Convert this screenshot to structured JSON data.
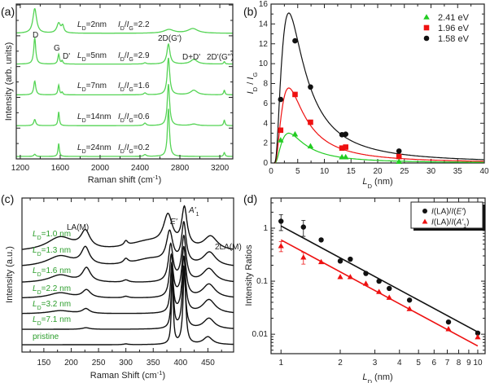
{
  "panels": {
    "a": "(a)",
    "b": "(b)",
    "c": "(c)",
    "d": "(d)"
  },
  "chart_data": [
    {
      "panel": "(a)",
      "type": "line",
      "xlabel": "Raman shift (cm^{-1})",
      "ylabel": "Intensity (arb. units)",
      "xlim": [
        1160,
        3330
      ],
      "ylim": [
        -0.08,
        4.95
      ],
      "xticks": [
        1200,
        1600,
        2000,
        2400,
        2800,
        3200
      ],
      "color": "#55d455",
      "peak_labels": [
        "D",
        "G",
        "D'",
        "2D(G')",
        "D+D'",
        "2D'(G'')"
      ],
      "spectra": [
        {
          "label_ld": "*L*_{D}=24nm",
          "label_ratio": "*I*_{D}/*I*_{G}=0.2",
          "offset": 0,
          "peaks": [
            [
              1345,
              0.07,
              12
            ],
            [
              1585,
              0.42,
              8
            ],
            [
              2450,
              0.06,
              15
            ],
            [
              2685,
              1.55,
              12
            ],
            [
              3245,
              0.13,
              8
            ]
          ]
        },
        {
          "label_ld": "*L*_{D}=14nm",
          "label_ratio": "*I*_{D}/*I*_{G}=0.6",
          "offset": 1,
          "peaks": [
            [
              1345,
              0.2,
              12
            ],
            [
              1585,
              0.45,
              8
            ],
            [
              2450,
              0.08,
              15
            ],
            [
              2685,
              1.35,
              14
            ],
            [
              2940,
              0.05,
              40
            ],
            [
              3245,
              0.18,
              8
            ]
          ]
        },
        {
          "label_ld": "*L*_{D}=7nm",
          "label_ratio": "*I*_{D}/*I*_{G}=1.6",
          "offset": 2,
          "peaks": [
            [
              1345,
              0.45,
              12
            ],
            [
              1585,
              0.32,
              9
            ],
            [
              1620,
              0.08,
              8
            ],
            [
              2450,
              0.06,
              15
            ],
            [
              2685,
              1.2,
              15
            ],
            [
              2940,
              0.15,
              40
            ],
            [
              3245,
              0.15,
              8
            ]
          ]
        },
        {
          "label_ld": "*L*_{D}=5nm",
          "label_ratio": "*I*_{D}/*I*_{G}=2.9",
          "offset": 3,
          "peaks": [
            [
              1345,
              0.85,
              12
            ],
            [
              1585,
              0.32,
              10
            ],
            [
              1620,
              0.1,
              8
            ],
            [
              2450,
              0.04,
              15
            ],
            [
              2685,
              0.65,
              18
            ],
            [
              2940,
              0.15,
              40
            ],
            [
              3245,
              0.08,
              8
            ]
          ]
        },
        {
          "label_ld": "*L*_{D}=2nm",
          "label_ratio": "*I*_{D}/*I*_{G}=2.2",
          "offset": 4,
          "peaks": [
            [
              1345,
              0.8,
              22
            ],
            [
              1585,
              0.32,
              22
            ],
            [
              1625,
              0.22,
              14
            ],
            [
              2690,
              0.12,
              60
            ],
            [
              2930,
              0.15,
              60
            ]
          ]
        }
      ]
    },
    {
      "panel": "(b)",
      "type": "scatter",
      "xlabel": "*L*_{D} (nm)",
      "ylabel": "*I*_{D} / *I*_{G}",
      "xlim": [
        0,
        40
      ],
      "ylim": [
        0,
        16
      ],
      "xticks": [
        0,
        5,
        10,
        15,
        20,
        25,
        30,
        35,
        40
      ],
      "yticks": [
        0,
        2,
        4,
        6,
        8,
        10,
        12,
        14,
        16
      ],
      "legend_position": "top-right",
      "series": [
        {
          "name": "2.41 eV",
          "marker": "triangle",
          "color": "#22cc22",
          "fit_peak": 3.0,
          "x": [
            1.8,
            4.5,
            7.4,
            13.3,
            14,
            24
          ],
          "y": [
            2.3,
            2.9,
            1.7,
            0.6,
            0.6,
            0.15
          ]
        },
        {
          "name": "1.96 eV",
          "marker": "square",
          "color": "#ee1111",
          "fit_peak": 7.55,
          "x": [
            1.8,
            4.5,
            7.4,
            13.3,
            14,
            24
          ],
          "y": [
            3.3,
            6.9,
            4.1,
            1.5,
            1.6,
            0.65
          ]
        },
        {
          "name": "1.58 eV",
          "marker": "circle",
          "color": "#111111",
          "fit_peak": 15.1,
          "x": [
            1.8,
            4.5,
            7.4,
            13.3,
            14,
            24
          ],
          "y": [
            6.4,
            12.3,
            7.65,
            2.85,
            2.9,
            1.2
          ]
        }
      ]
    },
    {
      "panel": "(c)",
      "type": "line",
      "xlabel": "Raman Shift (cm^{-1})",
      "ylabel": "Intensity (a.u.)",
      "xlim": [
        110,
        497
      ],
      "ylim": [
        -0.47,
        9.5
      ],
      "xticks": [
        150,
        200,
        250,
        300,
        350,
        400,
        450
      ],
      "color": "#111111",
      "label_color": "#2a9d2a",
      "peak_labels": {
        "la": "LA(M)",
        "star": "*",
        "e": "*E'*",
        "a": "*A'*_{1}",
        "la2": "2LA(M)"
      },
      "spectra": [
        {
          "label": "pristine",
          "offset": 0,
          "peaks": [
            [
              385,
              4.5,
              2
            ],
            [
              407,
              4.8,
              3
            ],
            [
              450,
              0.5,
              10
            ],
            [
              300,
              0.05,
              5
            ]
          ]
        },
        {
          "label": "*L*_{D}=7.1 nm",
          "offset": 1,
          "peaks": [
            [
              385,
              3.8,
              2.5
            ],
            [
              406,
              4.0,
              3.5
            ],
            [
              452,
              0.7,
              12
            ],
            [
              227,
              0.1,
              8
            ]
          ]
        },
        {
          "label": "*L*_{D}=3.2 nm",
          "offset": 2,
          "peaks": [
            [
              384,
              3.2,
              3
            ],
            [
              406,
              3.6,
              4
            ],
            [
              452,
              0.9,
              14
            ],
            [
              227,
              0.3,
              8
            ],
            [
              180,
              0.2,
              25
            ]
          ]
        },
        {
          "label": "*L*_{D}=2.2 nm",
          "offset": 3,
          "peaks": [
            [
              383,
              2.7,
              4
            ],
            [
              406,
              3.2,
              4.5
            ],
            [
              452,
              0.9,
              14
            ],
            [
              228,
              0.5,
              9
            ],
            [
              180,
              0.35,
              25
            ],
            [
              300,
              0.1,
              6
            ]
          ]
        },
        {
          "label": "*L*_{D}=1.6 nm",
          "offset": 4,
          "peaks": [
            [
              382,
              2.4,
              5
            ],
            [
              406,
              2.9,
              5
            ],
            [
              452,
              0.9,
              14
            ],
            [
              228,
              0.9,
              9
            ],
            [
              180,
              0.5,
              25
            ],
            [
              300,
              0.15,
              6
            ]
          ]
        },
        {
          "label": "*L*_{D}=1.3 nm",
          "offset": 5,
          "peaks": [
            [
              380,
              2.0,
              7
            ],
            [
              406,
              2.6,
              5
            ],
            [
              453,
              0.9,
              14
            ],
            [
              226,
              1.1,
              9
            ],
            [
              180,
              0.7,
              30
            ],
            [
              300,
              0.3,
              5
            ],
            [
              345,
              0.5,
              40
            ]
          ]
        },
        {
          "label": "*L*_{D}=1.0 nm",
          "offset": 6,
          "peaks": [
            [
              377,
              2.0,
              10
            ],
            [
              407,
              2.5,
              6
            ],
            [
              455,
              0.9,
              15
            ],
            [
              226,
              1.1,
              10
            ],
            [
              180,
              0.9,
              30
            ],
            [
              300,
              0.3,
              4
            ],
            [
              340,
              0.6,
              45
            ]
          ]
        }
      ]
    },
    {
      "panel": "(d)",
      "type": "scatter",
      "xlabel": "*L*_{D} (nm)",
      "ylabel": "Intensity Ratios",
      "xscale": "log",
      "yscale": "log",
      "xlim": [
        0.89,
        10.9
      ],
      "ylim": [
        0.0043,
        3.7
      ],
      "xticks": [
        "1",
        "2",
        "3",
        "4",
        "5",
        "6",
        "7",
        "8",
        "9",
        "10"
      ],
      "yticks": [
        "1",
        "0.1",
        "0.01"
      ],
      "legend_position": "top-right",
      "series": [
        {
          "name": "*I*(LA)/*I*(*E'*)",
          "marker": "circle",
          "color": "#111111",
          "x": [
            1,
            1.3,
            1.6,
            2,
            2.25,
            2.7,
            3.15,
            3.55,
            4.5,
            7.1,
            10
          ],
          "y": [
            1.35,
            1.05,
            0.6,
            0.24,
            0.26,
            0.14,
            0.1,
            0.073,
            0.044,
            0.017,
            0.0105
          ],
          "err": [
            0.45,
            0.35,
            0,
            0,
            0,
            0,
            0,
            0,
            0,
            0,
            0
          ],
          "fit": [
            [
              1,
              1.1
            ],
            [
              10,
              0.011
            ]
          ]
        },
        {
          "name": "*I*(LA)/*I*(*A'*_{1})",
          "marker": "triangle",
          "color": "#ee1111",
          "x": [
            1,
            1.3,
            1.6,
            2,
            2.25,
            2.7,
            3.15,
            3.55,
            4.5,
            7.1,
            10
          ],
          "y": [
            0.46,
            0.28,
            0.23,
            0.12,
            0.12,
            0.09,
            0.063,
            0.049,
            0.03,
            0.0125,
            0.0088
          ],
          "err": [
            0.1,
            0.07,
            0,
            0,
            0,
            0,
            0,
            0,
            0,
            0,
            0
          ],
          "fit": [
            [
              1,
              0.6
            ],
            [
              10,
              0.006
            ]
          ]
        }
      ]
    }
  ]
}
